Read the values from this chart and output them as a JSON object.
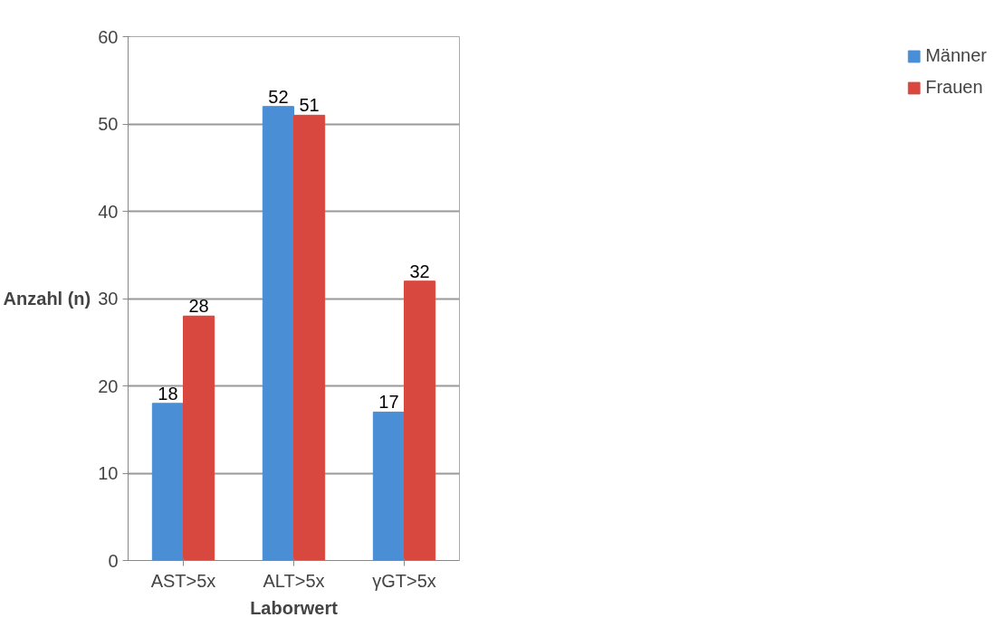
{
  "chart_data": {
    "type": "bar",
    "xlabel": "Laborwert",
    "ylabel": "Anzahl (n)",
    "categories": [
      "AST>5x",
      "ALT>5x",
      "γGT>5x"
    ],
    "series": [
      {
        "name": "Männer",
        "color": "#4a8fd6",
        "values": [
          18,
          52,
          17
        ]
      },
      {
        "name": "Frauen",
        "color": "#d9483e",
        "values": [
          28,
          51,
          32
        ]
      }
    ],
    "ylim": [
      0,
      60
    ],
    "yticks": [
      0,
      10,
      20,
      30,
      40,
      50,
      60
    ],
    "grid": "y",
    "legend": "right",
    "data_labels": true
  }
}
